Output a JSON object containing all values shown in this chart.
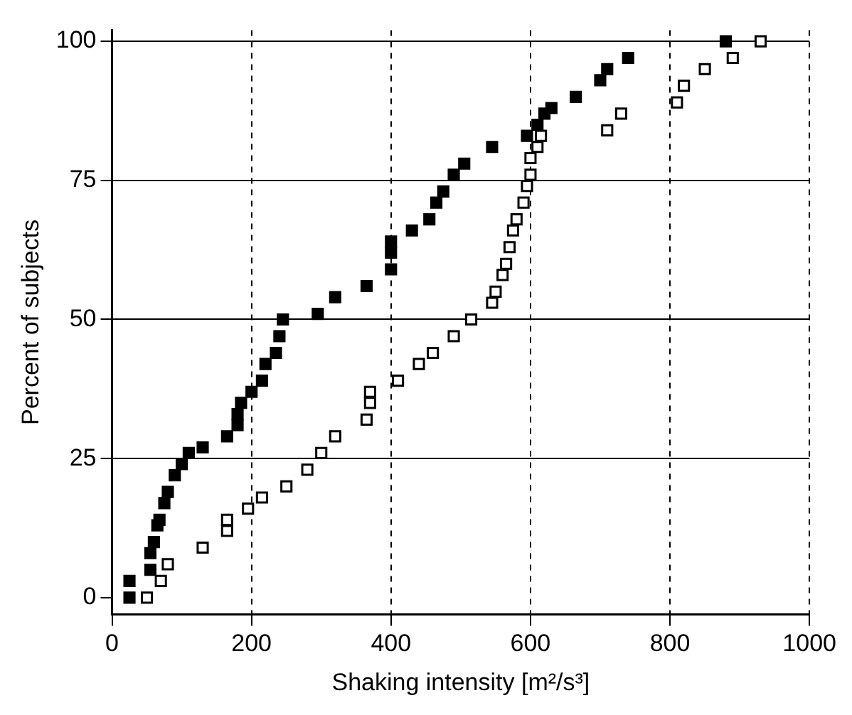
{
  "chart_data": {
    "type": "scatter",
    "xlabel": "Shaking intensity [m²/s³]",
    "ylabel": "Percent of subjects",
    "xlim": [
      0,
      1000
    ],
    "ylim": [
      -3,
      102
    ],
    "xticks": [
      0,
      200,
      400,
      600,
      800,
      1000
    ],
    "yticks": [
      0,
      25,
      50,
      75,
      100
    ],
    "grid": true,
    "legend": false,
    "marker": "square",
    "series": [
      {
        "color": "#000000",
        "x": [
          25,
          25,
          55,
          55,
          60,
          65,
          68,
          75,
          80,
          90,
          100,
          110,
          130,
          165,
          180,
          180,
          185,
          200,
          215,
          220,
          235,
          240,
          245,
          295,
          320,
          365,
          400,
          400,
          400,
          430,
          455,
          465,
          475,
          490,
          505,
          545,
          595,
          610,
          620,
          630,
          665,
          700,
          710,
          740,
          880
        ],
        "values": [
          0,
          3,
          5,
          8,
          10,
          13,
          14,
          17,
          19,
          22,
          24,
          26,
          27,
          29,
          31,
          33,
          35,
          37,
          39,
          42,
          44,
          47,
          50,
          51,
          54,
          56,
          59,
          62,
          64,
          66,
          68,
          71,
          73,
          76,
          78,
          81,
          83,
          85,
          87,
          88,
          90,
          93,
          95,
          97,
          100
        ]
      },
      {
        "color": "#ffffff",
        "x": [
          50,
          70,
          80,
          130,
          165,
          165,
          195,
          215,
          250,
          280,
          300,
          320,
          365,
          370,
          370,
          410,
          440,
          460,
          490,
          515,
          545,
          550,
          560,
          565,
          570,
          575,
          580,
          590,
          595,
          600,
          600,
          610,
          615,
          710,
          730,
          810,
          820,
          850,
          890,
          930
        ],
        "values": [
          0,
          3,
          6,
          9,
          12,
          14,
          16,
          18,
          20,
          23,
          26,
          29,
          32,
          35,
          37,
          39,
          42,
          44,
          47,
          50,
          53,
          55,
          58,
          60,
          63,
          66,
          68,
          71,
          74,
          76,
          79,
          81,
          83,
          84,
          87,
          89,
          92,
          95,
          97,
          100
        ]
      }
    ]
  }
}
